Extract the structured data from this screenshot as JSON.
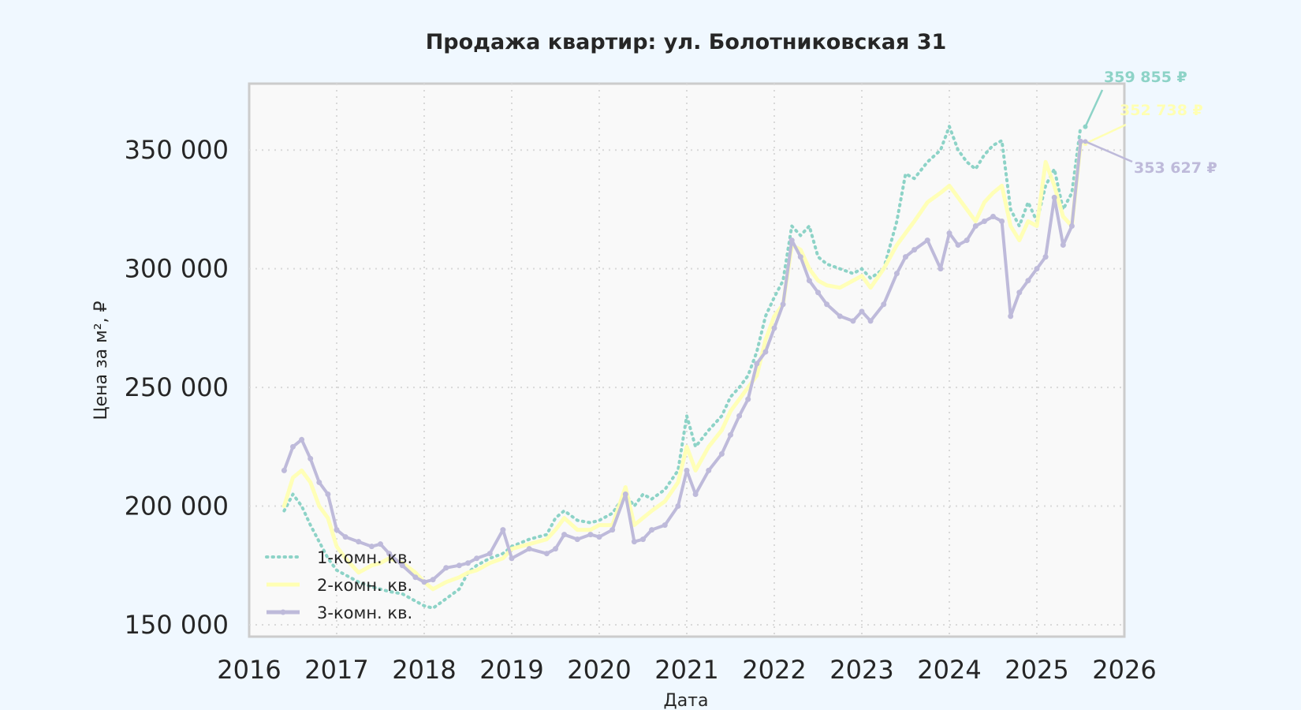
{
  "chart_data": {
    "type": "line",
    "title": "Продажа квартир: ул. Болотниковская 31",
    "xlabel": "Дата",
    "ylabel": "Цена за м², ₽",
    "xlim": [
      2016.0,
      2026.0
    ],
    "ylim": [
      145000,
      378000
    ],
    "x_ticks": [
      2016,
      2017,
      2018,
      2019,
      2020,
      2021,
      2022,
      2023,
      2024,
      2025,
      2026
    ],
    "x_tick_labels": [
      "2016",
      "2017",
      "2018",
      "2019",
      "2020",
      "2021",
      "2022",
      "2023",
      "2024",
      "2025",
      "2026"
    ],
    "y_ticks": [
      150000,
      200000,
      250000,
      300000,
      350000
    ],
    "y_tick_labels": [
      "150 000",
      "200 000",
      "250 000",
      "300 000",
      "350 000"
    ],
    "grid": true,
    "legend_position": "bottom-left",
    "colors": {
      "series_1": "#8dd3c7",
      "series_2": "#ffffb3",
      "series_3": "#bebada",
      "background": "#f0f8ff",
      "plot_background": "#f9f9f9",
      "grid": "#d9d9d9",
      "frame": "#cccccc"
    },
    "series": [
      {
        "name": "1-комн. кв.",
        "style": "dotted",
        "x": [
          2016.4,
          2016.5,
          2016.6,
          2016.7,
          2016.8,
          2016.9,
          2017.0,
          2017.1,
          2017.25,
          2017.4,
          2017.5,
          2017.6,
          2017.75,
          2017.9,
          2018.0,
          2018.1,
          2018.25,
          2018.4,
          2018.5,
          2018.6,
          2018.75,
          2018.9,
          2019.0,
          2019.2,
          2019.4,
          2019.5,
          2019.6,
          2019.75,
          2019.9,
          2020.0,
          2020.15,
          2020.3,
          2020.4,
          2020.5,
          2020.6,
          2020.75,
          2020.9,
          2021.0,
          2021.1,
          2021.25,
          2021.4,
          2021.5,
          2021.6,
          2021.7,
          2021.8,
          2021.9,
          2022.0,
          2022.1,
          2022.2,
          2022.3,
          2022.4,
          2022.5,
          2022.6,
          2022.75,
          2022.9,
          2023.0,
          2023.1,
          2023.25,
          2023.4,
          2023.5,
          2023.6,
          2023.75,
          2023.9,
          2024.0,
          2024.1,
          2024.2,
          2024.3,
          2024.4,
          2024.5,
          2024.6,
          2024.7,
          2024.8,
          2024.9,
          2025.0,
          2025.1,
          2025.2,
          2025.3,
          2025.4,
          2025.5
        ],
        "values": [
          198000,
          205000,
          200000,
          192000,
          185000,
          178000,
          173000,
          171000,
          168000,
          166000,
          165000,
          164000,
          163000,
          160000,
          158000,
          157000,
          161000,
          165000,
          172000,
          175000,
          178000,
          180000,
          183000,
          186000,
          188000,
          195000,
          198000,
          194000,
          193000,
          194000,
          197000,
          205000,
          200000,
          205000,
          203000,
          207000,
          215000,
          238000,
          225000,
          232000,
          238000,
          246000,
          250000,
          255000,
          265000,
          280000,
          288000,
          295000,
          318000,
          314000,
          318000,
          305000,
          302000,
          300000,
          298000,
          300000,
          296000,
          300000,
          320000,
          340000,
          338000,
          345000,
          350000,
          360000,
          350000,
          345000,
          342000,
          348000,
          352000,
          354000,
          325000,
          318000,
          328000,
          320000,
          335000,
          342000,
          325000,
          332000,
          359855
        ]
      },
      {
        "name": "2-комн. кв.",
        "style": "solid",
        "x": [
          2016.4,
          2016.5,
          2016.6,
          2016.7,
          2016.8,
          2016.9,
          2017.0,
          2017.1,
          2017.25,
          2017.4,
          2017.5,
          2017.6,
          2017.75,
          2017.9,
          2018.0,
          2018.1,
          2018.25,
          2018.4,
          2018.5,
          2018.6,
          2018.75,
          2018.9,
          2019.0,
          2019.2,
          2019.4,
          2019.5,
          2019.6,
          2019.75,
          2019.9,
          2020.0,
          2020.15,
          2020.3,
          2020.4,
          2020.5,
          2020.6,
          2020.75,
          2020.9,
          2021.0,
          2021.1,
          2021.25,
          2021.4,
          2021.5,
          2021.6,
          2021.7,
          2021.8,
          2021.9,
          2022.0,
          2022.1,
          2022.2,
          2022.3,
          2022.4,
          2022.5,
          2022.6,
          2022.75,
          2022.9,
          2023.0,
          2023.1,
          2023.25,
          2023.4,
          2023.5,
          2023.6,
          2023.75,
          2023.9,
          2024.0,
          2024.1,
          2024.2,
          2024.3,
          2024.4,
          2024.5,
          2024.6,
          2024.7,
          2024.8,
          2024.9,
          2025.0,
          2025.1,
          2025.2,
          2025.3,
          2025.4,
          2025.5
        ],
        "values": [
          200000,
          212000,
          215000,
          210000,
          200000,
          195000,
          183000,
          178000,
          172000,
          175000,
          176000,
          178000,
          176000,
          172000,
          168000,
          165000,
          168000,
          170000,
          172000,
          173000,
          176000,
          178000,
          182000,
          184000,
          186000,
          190000,
          195000,
          190000,
          190000,
          192000,
          192000,
          208000,
          192000,
          195000,
          198000,
          202000,
          210000,
          225000,
          215000,
          225000,
          232000,
          240000,
          245000,
          250000,
          255000,
          270000,
          280000,
          285000,
          310000,
          308000,
          300000,
          295000,
          293000,
          292000,
          295000,
          297000,
          292000,
          300000,
          310000,
          315000,
          320000,
          328000,
          332000,
          335000,
          330000,
          325000,
          320000,
          328000,
          332000,
          335000,
          318000,
          312000,
          320000,
          318000,
          345000,
          335000,
          322000,
          318000,
          352738
        ]
      },
      {
        "name": "3-комн. кв.",
        "style": "solid-marker",
        "x": [
          2016.4,
          2016.5,
          2016.6,
          2016.7,
          2016.8,
          2016.9,
          2017.0,
          2017.1,
          2017.25,
          2017.4,
          2017.5,
          2017.6,
          2017.75,
          2017.9,
          2018.0,
          2018.1,
          2018.25,
          2018.4,
          2018.5,
          2018.6,
          2018.75,
          2018.9,
          2019.0,
          2019.2,
          2019.4,
          2019.5,
          2019.6,
          2019.75,
          2019.9,
          2020.0,
          2020.15,
          2020.3,
          2020.4,
          2020.5,
          2020.6,
          2020.75,
          2020.9,
          2021.0,
          2021.1,
          2021.25,
          2021.4,
          2021.5,
          2021.6,
          2021.7,
          2021.8,
          2021.9,
          2022.0,
          2022.1,
          2022.2,
          2022.3,
          2022.4,
          2022.5,
          2022.6,
          2022.75,
          2022.9,
          2023.0,
          2023.1,
          2023.25,
          2023.4,
          2023.5,
          2023.6,
          2023.75,
          2023.9,
          2024.0,
          2024.1,
          2024.2,
          2024.3,
          2024.4,
          2024.5,
          2024.6,
          2024.7,
          2024.8,
          2024.9,
          2025.0,
          2025.1,
          2025.2,
          2025.3,
          2025.4,
          2025.5
        ],
        "values": [
          215000,
          225000,
          228000,
          220000,
          210000,
          205000,
          190000,
          187000,
          185000,
          183000,
          184000,
          180000,
          175000,
          170000,
          168000,
          169000,
          174000,
          175000,
          176000,
          178000,
          180000,
          190000,
          178000,
          182000,
          180000,
          182000,
          188000,
          186000,
          188000,
          187000,
          190000,
          205000,
          185000,
          186000,
          190000,
          192000,
          200000,
          215000,
          205000,
          215000,
          222000,
          230000,
          238000,
          245000,
          260000,
          265000,
          275000,
          285000,
          312000,
          305000,
          295000,
          290000,
          285000,
          280000,
          278000,
          282000,
          278000,
          285000,
          298000,
          305000,
          308000,
          312000,
          300000,
          315000,
          310000,
          312000,
          318000,
          320000,
          322000,
          320000,
          280000,
          290000,
          295000,
          300000,
          305000,
          330000,
          310000,
          318000,
          353627
        ]
      }
    ],
    "annotations": [
      {
        "series": 0,
        "text": "359 855 ₽"
      },
      {
        "series": 1,
        "text": "352 738 ₽"
      },
      {
        "series": 2,
        "text": "353 627 ₽"
      }
    ]
  }
}
